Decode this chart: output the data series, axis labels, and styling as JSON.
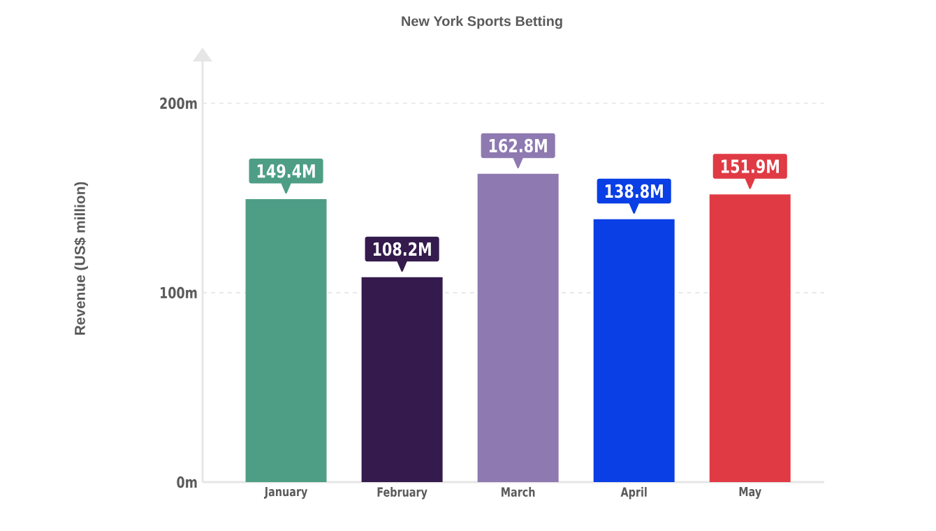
{
  "chart_data": {
    "type": "bar",
    "title": "New York Sports Betting",
    "ylabel": "Revenue (US$ million)",
    "categories": [
      "January",
      "February",
      "March",
      "April",
      "May"
    ],
    "values": [
      149.4,
      108.2,
      162.8,
      138.8,
      151.9
    ],
    "colors": [
      "#4e9e86",
      "#341a4d",
      "#8e79b0",
      "#0a3fe6",
      "#e03a44"
    ],
    "value_labels": [
      "149.4M",
      "108.2M",
      "162.8M",
      "138.8M",
      "151.9M"
    ],
    "ylim": [
      0,
      225
    ],
    "yticks": [
      {
        "value": 0,
        "label": "0m"
      },
      {
        "value": 100,
        "label": "100m"
      },
      {
        "value": 200,
        "label": "200m"
      }
    ],
    "grid": "y"
  }
}
